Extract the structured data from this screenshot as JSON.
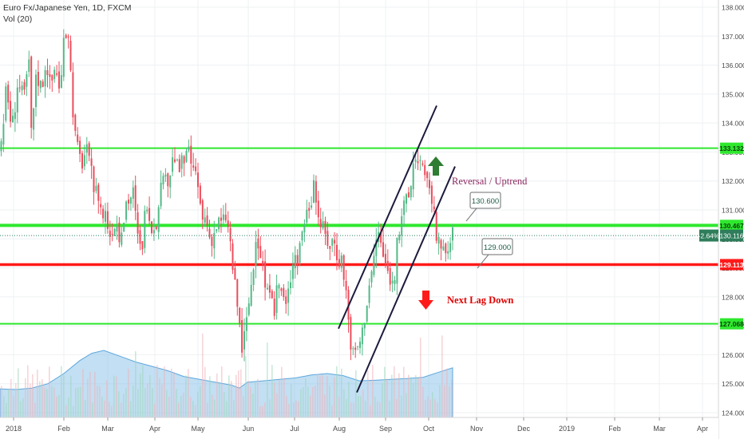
{
  "header": {
    "symbol_line": "Euro Fx/Japanese Yen, 1D, FXCM",
    "volume_line": "Vol (20)"
  },
  "colors": {
    "up": "#53b987",
    "down": "#eb4d5c",
    "support_line": "#2ee82e",
    "red_line": "#ff1a1a",
    "channel": "#1c1a3d",
    "vol_area": "#8fc4ea",
    "arrow_up": "#2e7d32",
    "arrow_down": "#ff1a1a",
    "text_purple": "#8b2a62",
    "text_red": "#e00000"
  },
  "chart_data": {
    "type": "candlestick",
    "title": "Euro Fx/Japanese Yen, 1D, FXCM",
    "ylim": [
      123.9,
      138.25
    ],
    "y_ticks": [
      "138.000",
      "137.000",
      "136.000",
      "135.000",
      "134.000",
      "133.000",
      "132.000",
      "131.000",
      "130.000",
      "129.000",
      "128.000",
      "127.000",
      "126.000",
      "125.000",
      "124.000"
    ],
    "x_ticks": [
      "2018",
      "Feb",
      "Mar",
      "Apr",
      "May",
      "Jun",
      "Jul",
      "Aug",
      "Sep",
      "Oct",
      "Nov",
      "Dec",
      "2019",
      "Feb",
      "Mar",
      "Apr"
    ],
    "horizontal_levels": [
      {
        "label": "133.132",
        "value": 133.132,
        "color": "green"
      },
      {
        "label": "130.467",
        "value": 130.467,
        "color": "green"
      },
      {
        "label": "129.113",
        "value": 129.113,
        "color": "red"
      },
      {
        "label": "127.068",
        "value": 127.068,
        "color": "green"
      }
    ],
    "last_price": {
      "change": "-2.64%",
      "price": "130.116",
      "value": 130.116
    },
    "price_path": [
      [
        0,
        133.0
      ],
      [
        8,
        135.2
      ],
      [
        15,
        133.8
      ],
      [
        22,
        135.4
      ],
      [
        30,
        134.8
      ],
      [
        36,
        136.2
      ],
      [
        40,
        133.2
      ],
      [
        45,
        135.8
      ],
      [
        52,
        135.2
      ],
      [
        58,
        136.3
      ],
      [
        63,
        135.2
      ],
      [
        70,
        136.1
      ],
      [
        75,
        134.9
      ],
      [
        80,
        136.7
      ],
      [
        85,
        137.5
      ],
      [
        90,
        135.0
      ],
      [
        95,
        133.3
      ],
      [
        102,
        132.6
      ],
      [
        108,
        133.1
      ],
      [
        113,
        132.4
      ],
      [
        118,
        131.7
      ],
      [
        123,
        131.6
      ],
      [
        128,
        130.8
      ],
      [
        133,
        130.9
      ],
      [
        137,
        130.1
      ],
      [
        142,
        130.6
      ],
      [
        147,
        130.5
      ],
      [
        152,
        129.8
      ],
      [
        157,
        131.3
      ],
      [
        162,
        131.4
      ],
      [
        167,
        131.6
      ],
      [
        172,
        130.1
      ],
      [
        177,
        129.5
      ],
      [
        182,
        131.0
      ],
      [
        187,
        130.3
      ],
      [
        192,
        130.5
      ],
      [
        198,
        130.8
      ],
      [
        203,
        131.9
      ],
      [
        208,
        131.9
      ],
      [
        213,
        132.3
      ],
      [
        218,
        133.0
      ],
      [
        223,
        132.3
      ],
      [
        228,
        132.6
      ],
      [
        233,
        132.8
      ],
      [
        238,
        132.9
      ],
      [
        243,
        132.2
      ],
      [
        248,
        131.8
      ],
      [
        253,
        130.6
      ],
      [
        258,
        130.8
      ],
      [
        263,
        130.0
      ],
      [
        268,
        130.2
      ],
      [
        273,
        130.6
      ],
      [
        278,
        130.5
      ],
      [
        283,
        130.8
      ],
      [
        288,
        130.0
      ],
      [
        293,
        128.6
      ],
      [
        298,
        127.6
      ],
      [
        303,
        126.2
      ],
      [
        308,
        126.9
      ],
      [
        313,
        128.1
      ],
      [
        318,
        129.1
      ],
      [
        323,
        130.0
      ],
      [
        328,
        129.3
      ],
      [
        333,
        128.2
      ],
      [
        338,
        127.8
      ],
      [
        343,
        127.5
      ],
      [
        348,
        128.5
      ],
      [
        353,
        128.2
      ],
      [
        358,
        127.6
      ],
      [
        363,
        128.5
      ],
      [
        368,
        129.6
      ],
      [
        373,
        129.3
      ],
      [
        378,
        130.3
      ],
      [
        383,
        130.8
      ],
      [
        388,
        131.3
      ],
      [
        393,
        131.7
      ],
      [
        398,
        131.0
      ],
      [
        403,
        130.4
      ],
      [
        408,
        130.1
      ],
      [
        413,
        129.8
      ],
      [
        418,
        130.0
      ],
      [
        423,
        129.4
      ],
      [
        428,
        129.3
      ],
      [
        433,
        128.4
      ],
      [
        438,
        126.7
      ],
      [
        443,
        125.9
      ],
      [
        448,
        126.3
      ],
      [
        453,
        126.6
      ],
      [
        458,
        127.6
      ],
      [
        463,
        128.5
      ],
      [
        468,
        129.2
      ],
      [
        473,
        130.4
      ],
      [
        478,
        129.7
      ],
      [
        483,
        129.0
      ],
      [
        488,
        128.8
      ],
      [
        493,
        128.3
      ],
      [
        498,
        129.9
      ],
      [
        503,
        130.9
      ],
      [
        508,
        131.2
      ],
      [
        513,
        131.5
      ],
      [
        518,
        132.7
      ],
      [
        523,
        132.9
      ],
      [
        528,
        132.6
      ],
      [
        533,
        131.8
      ],
      [
        538,
        132.0
      ],
      [
        543,
        130.9
      ],
      [
        548,
        129.8
      ],
      [
        553,
        129.6
      ],
      [
        558,
        129.4
      ],
      [
        563,
        129.8
      ],
      [
        567,
        130.116
      ]
    ],
    "volume_area": [
      [
        0,
        124.82
      ],
      [
        20,
        124.8
      ],
      [
        40,
        124.85
      ],
      [
        60,
        125.0
      ],
      [
        80,
        125.35
      ],
      [
        100,
        125.8
      ],
      [
        115,
        126.05
      ],
      [
        130,
        126.15
      ],
      [
        150,
        125.95
      ],
      [
        170,
        125.75
      ],
      [
        190,
        125.6
      ],
      [
        210,
        125.45
      ],
      [
        230,
        125.25
      ],
      [
        250,
        125.15
      ],
      [
        270,
        125.05
      ],
      [
        290,
        124.95
      ],
      [
        300,
        124.85
      ],
      [
        310,
        125.05
      ],
      [
        330,
        125.1
      ],
      [
        350,
        125.15
      ],
      [
        370,
        125.2
      ],
      [
        390,
        125.3
      ],
      [
        410,
        125.35
      ],
      [
        430,
        125.28
      ],
      [
        450,
        125.1
      ],
      [
        470,
        125.12
      ],
      [
        490,
        125.15
      ],
      [
        510,
        125.18
      ],
      [
        530,
        125.22
      ],
      [
        550,
        125.4
      ],
      [
        567,
        125.55
      ]
    ],
    "channel_lines": [
      {
        "from": [
          "Aug",
          126.9
        ],
        "to": [
          "Sep-end",
          134.6
        ]
      },
      {
        "from": [
          "Aug",
          124.7
        ],
        "to": [
          "Oct",
          132.5
        ]
      }
    ],
    "annotations": [
      {
        "text": "Reversal / Uptrend",
        "color": "purple"
      },
      {
        "text": "Next Lag Down",
        "color": "red"
      },
      {
        "callout": "130.600",
        "value": 130.6
      },
      {
        "callout": "129.000",
        "value": 129.0
      }
    ]
  }
}
